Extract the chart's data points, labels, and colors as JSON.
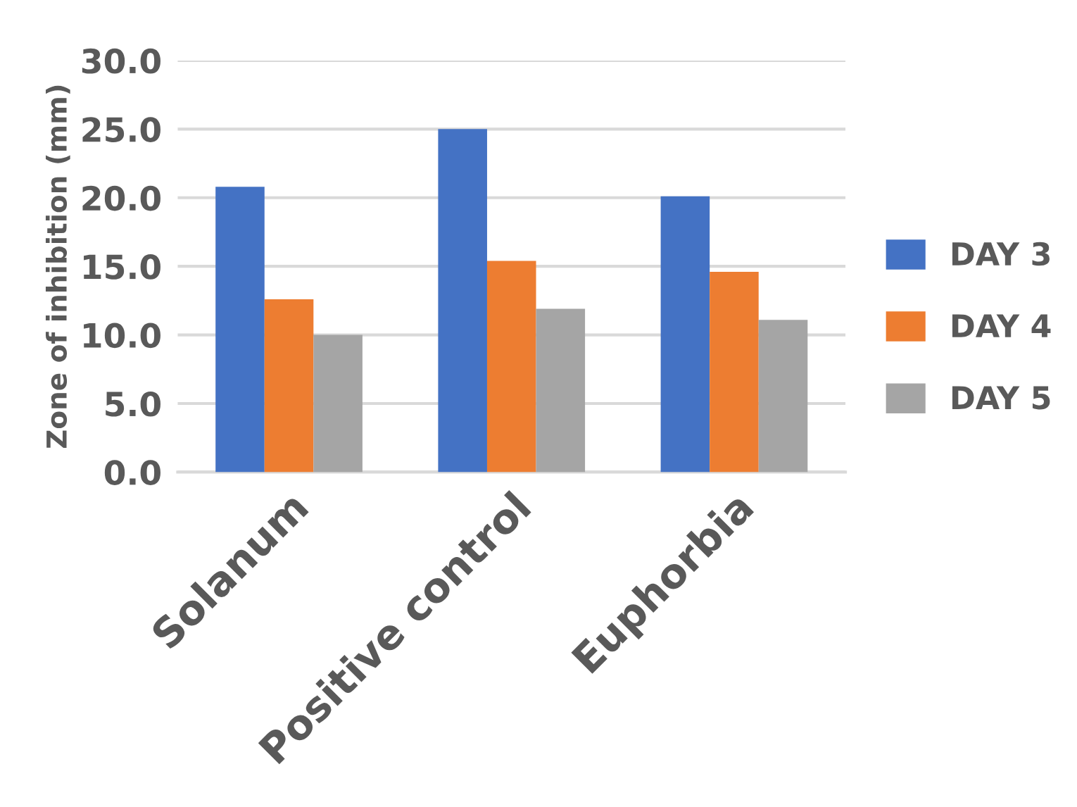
{
  "chart_data": {
    "type": "bar",
    "ylabel": "Zone of inhibition (mm)",
    "categories": [
      "Solanum",
      "Positive control",
      "Euphorbia"
    ],
    "series": [
      {
        "name": "DAY 3",
        "color": "#4472c4",
        "values": [
          20.8,
          25.0,
          20.1
        ]
      },
      {
        "name": "DAY 4",
        "color": "#ed7d31",
        "values": [
          12.6,
          15.4,
          14.6
        ]
      },
      {
        "name": "DAY 5",
        "color": "#a5a5a5",
        "values": [
          10.0,
          11.9,
          11.1
        ]
      }
    ],
    "ylim": [
      0,
      30
    ],
    "yticks": [
      {
        "value": 0,
        "label": "0.0"
      },
      {
        "value": 5,
        "label": "5.0"
      },
      {
        "value": 10,
        "label": "10.0"
      },
      {
        "value": 15,
        "label": "15.0"
      },
      {
        "value": 20,
        "label": "20.0"
      },
      {
        "value": 25,
        "label": "25.0"
      },
      {
        "value": 30,
        "label": "30.0"
      }
    ],
    "grid": "y",
    "legend": "right"
  }
}
